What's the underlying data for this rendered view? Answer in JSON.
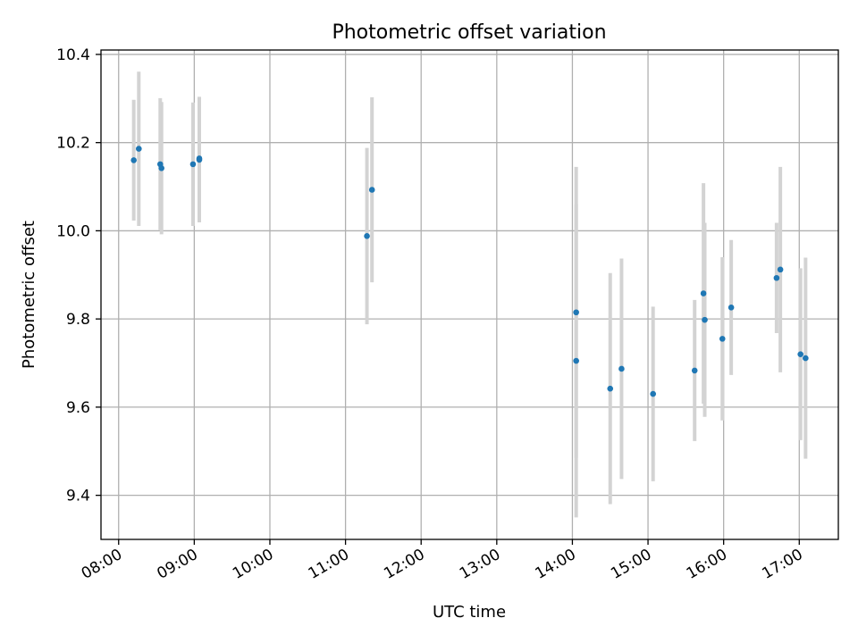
{
  "chart_data": {
    "type": "scatter",
    "title": "Photometric offset variation",
    "xlabel": "UTC time",
    "ylabel": "Photometric offset",
    "x_is_time": true,
    "xlim": [
      "07:46",
      "17:31"
    ],
    "ylim": [
      9.3,
      10.41
    ],
    "x_ticks": [
      "08:00",
      "09:00",
      "10:00",
      "11:00",
      "12:00",
      "13:00",
      "14:00",
      "15:00",
      "16:00",
      "17:00"
    ],
    "y_ticks": [
      "9.4",
      "9.6",
      "9.8",
      "10.0",
      "10.2",
      "10.4"
    ],
    "grid": true,
    "error_bar_color": "#d3d3d3",
    "point_color": "#1f77b4",
    "points": [
      {
        "x": "08:12",
        "y": 10.16,
        "err": 0.137
      },
      {
        "x": "08:16",
        "y": 10.186,
        "err": 0.175
      },
      {
        "x": "08:33",
        "y": 10.151,
        "err": 0.15
      },
      {
        "x": "08:34",
        "y": 10.142,
        "err": 0.15
      },
      {
        "x": "08:59",
        "y": 10.151,
        "err": 0.14
      },
      {
        "x": "09:04",
        "y": 10.161,
        "err": 0.142
      },
      {
        "x": "09:04",
        "y": 10.164,
        "err": 0.14
      },
      {
        "x": "11:17",
        "y": 9.988,
        "err": 0.2
      },
      {
        "x": "11:21",
        "y": 10.093,
        "err": 0.21
      },
      {
        "x": "14:03",
        "y": 9.815,
        "err": 0.33
      },
      {
        "x": "14:03",
        "y": 9.705,
        "err": 0.355
      },
      {
        "x": "14:30",
        "y": 9.642,
        "err": 0.262
      },
      {
        "x": "14:39",
        "y": 9.687,
        "err": 0.25
      },
      {
        "x": "15:04",
        "y": 9.63,
        "err": 0.198
      },
      {
        "x": "15:37",
        "y": 9.683,
        "err": 0.16
      },
      {
        "x": "15:44",
        "y": 9.858,
        "err": 0.25
      },
      {
        "x": "15:45",
        "y": 9.798,
        "err": 0.22
      },
      {
        "x": "15:59",
        "y": 9.755,
        "err": 0.185
      },
      {
        "x": "16:06",
        "y": 9.826,
        "err": 0.153
      },
      {
        "x": "16:42",
        "y": 9.893,
        "err": 0.125
      },
      {
        "x": "16:45",
        "y": 9.912,
        "err": 0.233
      },
      {
        "x": "17:01",
        "y": 9.72,
        "err": 0.195
      },
      {
        "x": "17:05",
        "y": 9.711,
        "err": 0.228
      }
    ]
  }
}
